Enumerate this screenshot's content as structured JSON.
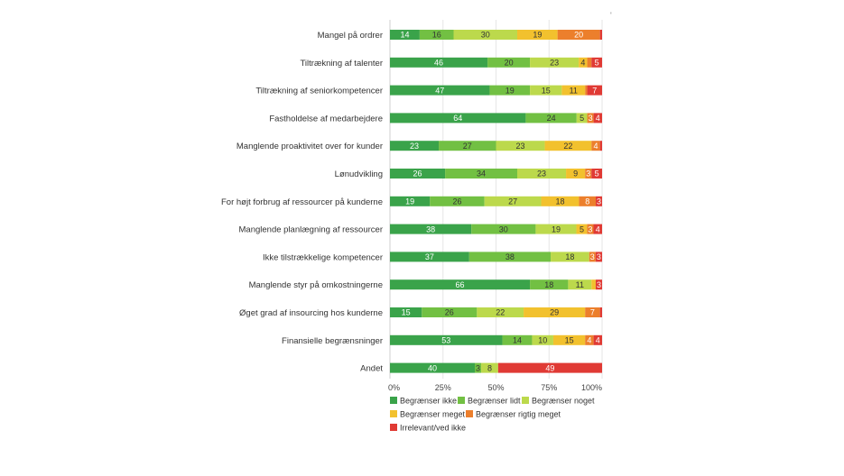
{
  "chart_data": {
    "type": "bar",
    "orientation": "horizontal",
    "stacked": true,
    "percent": true,
    "categories": [
      "Mangel på ordrer",
      "Tiltrækning af talenter",
      "Tiltrækning af seniorkompetencer",
      "Fastholdelse af medarbejdere",
      "Manglende proaktivitet over for kunder",
      "Lønudvikling",
      "For højt forbrug af ressourcer på kunderne",
      "Manglende planlægning af ressourcer",
      "Ikke tilstrækkelige kompetencer",
      "Manglende styr på omkostningerne",
      "Øget grad af insourcing hos kunderne",
      "Finansielle begrænsninger",
      "Andet"
    ],
    "series": [
      {
        "name": "Begrænser ikke",
        "color": "#3aa34a",
        "label_color": "#ffffff",
        "values": [
          14,
          46,
          47,
          64,
          23,
          26,
          19,
          38,
          37,
          66,
          15,
          53,
          40
        ]
      },
      {
        "name": "Begrænser lidt",
        "color": "#72c043",
        "label_color": "#333333",
        "values": [
          16,
          20,
          19,
          24,
          27,
          34,
          26,
          30,
          38,
          18,
          26,
          14,
          3
        ]
      },
      {
        "name": "Begrænser noget",
        "color": "#bcd94c",
        "label_color": "#333333",
        "values": [
          30,
          23,
          15,
          5,
          23,
          23,
          27,
          19,
          18,
          11,
          22,
          10,
          8
        ]
      },
      {
        "name": "Begrænser meget",
        "color": "#f2c12e",
        "label_color": "#333333",
        "values": [
          19,
          4,
          11,
          0,
          22,
          9,
          18,
          5,
          0,
          2,
          29,
          15,
          0
        ]
      },
      {
        "name": "Begrænser rigtig meget",
        "color": "#ec7f2c",
        "label_color": "#ffffff",
        "values": [
          20,
          2,
          1,
          3,
          4,
          3,
          8,
          3,
          3,
          0,
          7,
          4,
          0
        ]
      },
      {
        "name": "Irrelevant/ved ikke",
        "color": "#e03a34",
        "label_color": "#ffffff",
        "values": [
          1,
          5,
          7,
          4,
          1,
          5,
          3,
          4,
          3,
          3,
          1,
          4,
          49
        ]
      }
    ],
    "x_ticks": [
      "0%",
      "25%",
      "50%",
      "75%",
      "100%"
    ],
    "xlim": [
      0,
      100
    ],
    "grid": true,
    "legend": "bottom-left"
  },
  "stray_mark": "'"
}
